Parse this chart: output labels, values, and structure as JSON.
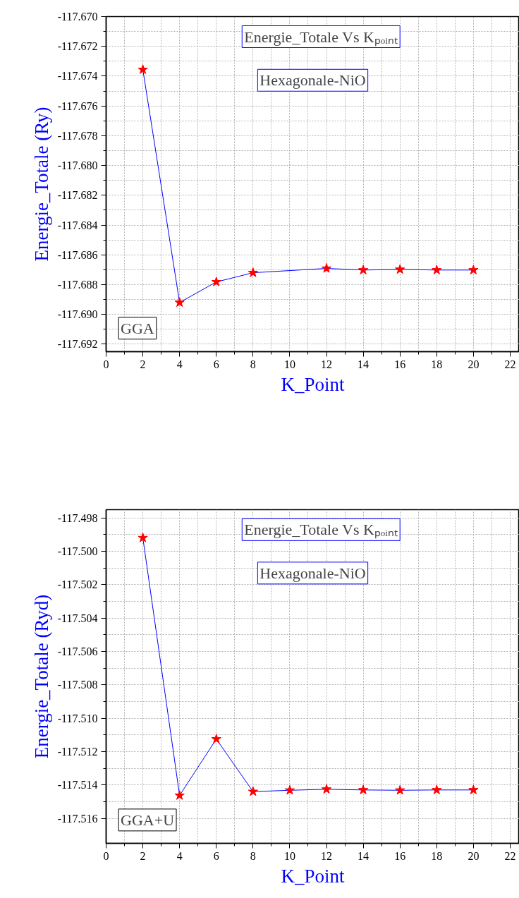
{
  "chart_data": [
    {
      "type": "line",
      "xlabel": "K_Point",
      "ylabel": "Energie_Totale (Ry)",
      "annotations": [
        "Energie_Totale Vs Kₚₒᵢₙₜ",
        "Hexagonale-NiO",
        "GGA"
      ],
      "x": [
        2,
        4,
        6,
        8,
        12,
        14,
        16,
        18,
        20
      ],
      "series": [
        {
          "color": "#0000ff",
          "colors": [
            "#ff0000",
            "#ff0000",
            "#ff0000",
            "#ff0000",
            "#ff0000",
            "#ff0000",
            "#ff0000",
            "#ff0000",
            "#ff0000"
          ],
          "values": [
            -117.67356,
            -117.6892,
            -117.68782,
            -117.6872,
            -117.68691,
            -117.68702,
            -117.68698,
            -117.68702,
            -117.68702
          ]
        }
      ],
      "xlim": [
        0,
        22.5
      ],
      "xticks": [
        0,
        2,
        4,
        6,
        8,
        10,
        12,
        14,
        16,
        18,
        20,
        22
      ],
      "ylim": [
        -117.6925,
        -117.67
      ],
      "yticks": [
        {
          "value": -117.692,
          "label": "-117.692"
        },
        {
          "value": -117.69,
          "label": "-117.690"
        },
        {
          "value": -117.688,
          "label": "-117.688"
        },
        {
          "value": -117.686,
          "label": "-117.686"
        },
        {
          "value": -117.684,
          "label": "-117.684"
        },
        {
          "value": -117.682,
          "label": "-117.682"
        },
        {
          "value": -117.68,
          "label": "-117.680"
        },
        {
          "value": -117.678,
          "label": "-117.678"
        },
        {
          "value": -117.676,
          "label": "-117.676"
        },
        {
          "value": -117.674,
          "label": "-117.674"
        },
        {
          "value": -117.672,
          "label": "-117.672"
        },
        {
          "value": -117.67,
          "label": "-117.670"
        }
      ],
      "grid": true,
      "marker": "star",
      "line_style": "solid"
    },
    {
      "type": "line",
      "xlabel": "K_Point",
      "ylabel": "Energie_Totale (Ryd)",
      "annotations": [
        "Energie_Totale Vs Kₚₒᵢₙₜ",
        "Hexagonale-NiO",
        "GGA+U"
      ],
      "x": [
        2,
        4,
        6,
        8,
        10,
        12,
        14,
        16,
        18,
        20
      ],
      "series": [
        {
          "color": "#0000ff",
          "colors": [
            "#ff0000",
            "#ff0000",
            "#ff0000",
            "#ff0000",
            "#ff0000",
            "#ff0000",
            "#ff0000",
            "#ff0000",
            "#ff0000",
            "#ff0000"
          ],
          "values": [
            -117.49919,
            -117.51463,
            -117.51125,
            -117.5144,
            -117.51432,
            -117.51426,
            -117.5143,
            -117.51432,
            -117.5143,
            -117.5143
          ]
        }
      ],
      "xlim": [
        0,
        22.5
      ],
      "xticks": [
        0,
        2,
        4,
        6,
        8,
        10,
        12,
        14,
        16,
        18,
        20,
        22
      ],
      "ylim": [
        -117.5175,
        -117.4975
      ],
      "yticks": [
        {
          "value": -117.516,
          "label": "-117.516"
        },
        {
          "value": -117.514,
          "label": "-117.514"
        },
        {
          "value": -117.512,
          "label": "-117.512"
        },
        {
          "value": -117.51,
          "label": "-117.510"
        },
        {
          "value": -117.508,
          "label": "-117.508"
        },
        {
          "value": -117.506,
          "label": "-117.506"
        },
        {
          "value": -117.504,
          "label": "-117.504"
        },
        {
          "value": -117.502,
          "label": "-117.502"
        },
        {
          "value": -117.5,
          "label": "-117.500"
        },
        {
          "value": -117.498,
          "label": "-117.498"
        }
      ],
      "grid": true,
      "marker": "star",
      "line_style": "solid"
    }
  ]
}
